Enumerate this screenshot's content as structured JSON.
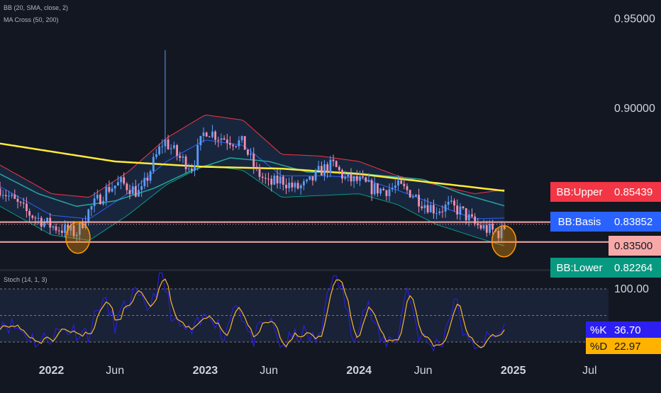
{
  "indicators": {
    "bb": "BB (20, SMA, close, 2)",
    "ma_cross": "MA Cross (50, 200)",
    "stoch": "Stoch (14, 1, 3)"
  },
  "chart_data": [
    {
      "type": "candlestick",
      "ylim": [
        0.81,
        0.96
      ],
      "y_ticks": [
        "0.95000",
        "0.90000"
      ],
      "y_tick_values": [
        0.95,
        0.9
      ],
      "x_ticks": [
        "2022",
        "Jun",
        "2023",
        "Jun",
        "2024",
        "Jun",
        "2025",
        "Jul"
      ],
      "x_tick_dates": [
        "2022-01-01",
        "2022-06-01",
        "2023-01-01",
        "2023-06-01",
        "2024-01-01",
        "2024-06-01",
        "2025-01-01",
        "2025-07-01"
      ],
      "x_range": [
        "2021-09-01",
        "2025-08-15"
      ],
      "horizontal_levels": [
        0.8362,
        0.8251
      ],
      "highlight_circles": [
        {
          "date": "2022-03-05",
          "value": 0.8275
        },
        {
          "date": "2024-12-10",
          "value": 0.8255
        }
      ],
      "series": {
        "close_anchors": [
          [
            "2021-09-01",
            0.855
          ],
          [
            "2021-11-01",
            0.842
          ],
          [
            "2022-01-01",
            0.834
          ],
          [
            "2022-03-01",
            0.83
          ],
          [
            "2022-04-01",
            0.843
          ],
          [
            "2022-05-15",
            0.855
          ],
          [
            "2022-06-15",
            0.858
          ],
          [
            "2022-08-01",
            0.852
          ],
          [
            "2022-09-01",
            0.87
          ],
          [
            "2022-09-25",
            0.882
          ],
          [
            "2022-11-01",
            0.872
          ],
          [
            "2022-12-01",
            0.867
          ],
          [
            "2023-01-01",
            0.888
          ],
          [
            "2023-02-01",
            0.884
          ],
          [
            "2023-03-01",
            0.882
          ],
          [
            "2023-04-01",
            0.88
          ],
          [
            "2023-05-01",
            0.865
          ],
          [
            "2023-06-01",
            0.857
          ],
          [
            "2023-07-01",
            0.86
          ],
          [
            "2023-08-01",
            0.855
          ],
          [
            "2023-09-01",
            0.857
          ],
          [
            "2023-10-01",
            0.865
          ],
          [
            "2023-11-01",
            0.868
          ],
          [
            "2023-12-01",
            0.86
          ],
          [
            "2024-01-01",
            0.859
          ],
          [
            "2024-02-01",
            0.855
          ],
          [
            "2024-03-01",
            0.854
          ],
          [
            "2024-04-01",
            0.856
          ],
          [
            "2024-05-01",
            0.853
          ],
          [
            "2024-06-01",
            0.847
          ],
          [
            "2024-07-01",
            0.843
          ],
          [
            "2024-08-01",
            0.845
          ],
          [
            "2024-09-01",
            0.842
          ],
          [
            "2024-10-01",
            0.835
          ],
          [
            "2024-11-01",
            0.832
          ],
          [
            "2024-12-01",
            0.83
          ],
          [
            "2024-12-15",
            0.835
          ]
        ],
        "spike": {
          "date": "2022-09-26",
          "high": 0.932
        },
        "bb_upper": [
          [
            "2021-09-01",
            0.868
          ],
          [
            "2022-01-01",
            0.852
          ],
          [
            "2022-04-01",
            0.85
          ],
          [
            "2022-07-01",
            0.864
          ],
          [
            "2022-10-01",
            0.883
          ],
          [
            "2023-01-01",
            0.896
          ],
          [
            "2023-04-01",
            0.893
          ],
          [
            "2023-07-01",
            0.874
          ],
          [
            "2023-10-01",
            0.873
          ],
          [
            "2024-01-01",
            0.87
          ],
          [
            "2024-04-01",
            0.862
          ],
          [
            "2024-07-01",
            0.857
          ],
          [
            "2024-10-01",
            0.852
          ],
          [
            "2024-12-15",
            0.8544
          ]
        ],
        "bb_basis": [
          [
            "2021-09-01",
            0.856
          ],
          [
            "2022-01-01",
            0.84
          ],
          [
            "2022-04-01",
            0.838
          ],
          [
            "2022-07-01",
            0.852
          ],
          [
            "2022-10-01",
            0.87
          ],
          [
            "2023-01-01",
            0.882
          ],
          [
            "2023-04-01",
            0.879
          ],
          [
            "2023-07-01",
            0.862
          ],
          [
            "2023-10-01",
            0.862
          ],
          [
            "2024-01-01",
            0.861
          ],
          [
            "2024-04-01",
            0.854
          ],
          [
            "2024-07-01",
            0.846
          ],
          [
            "2024-10-01",
            0.838
          ],
          [
            "2024-12-15",
            0.8385
          ]
        ],
        "bb_lower": [
          [
            "2021-09-01",
            0.845
          ],
          [
            "2022-01-01",
            0.829
          ],
          [
            "2022-04-01",
            0.826
          ],
          [
            "2022-07-01",
            0.84
          ],
          [
            "2022-10-01",
            0.857
          ],
          [
            "2023-01-01",
            0.868
          ],
          [
            "2023-04-01",
            0.865
          ],
          [
            "2023-07-01",
            0.85
          ],
          [
            "2023-10-01",
            0.851
          ],
          [
            "2024-01-01",
            0.852
          ],
          [
            "2024-04-01",
            0.846
          ],
          [
            "2024-07-01",
            0.835
          ],
          [
            "2024-10-01",
            0.828
          ],
          [
            "2024-12-15",
            0.8226
          ]
        ],
        "ma50": [
          [
            "2021-09-01",
            0.863
          ],
          [
            "2021-12-01",
            0.852
          ],
          [
            "2022-03-01",
            0.845
          ],
          [
            "2022-06-01",
            0.848
          ],
          [
            "2022-09-01",
            0.855
          ],
          [
            "2022-12-01",
            0.865
          ],
          [
            "2023-03-01",
            0.872
          ],
          [
            "2023-06-01",
            0.87
          ],
          [
            "2023-09-01",
            0.864
          ],
          [
            "2023-12-01",
            0.864
          ],
          [
            "2024-03-01",
            0.862
          ],
          [
            "2024-06-01",
            0.86
          ],
          [
            "2024-09-01",
            0.852
          ],
          [
            "2024-12-15",
            0.845
          ]
        ],
        "ma200": [
          [
            "2021-09-01",
            0.88
          ],
          [
            "2022-06-01",
            0.87
          ],
          [
            "2023-01-01",
            0.867
          ],
          [
            "2023-07-01",
            0.866
          ],
          [
            "2024-01-01",
            0.863
          ],
          [
            "2024-07-01",
            0.858
          ],
          [
            "2024-12-15",
            0.8535
          ]
        ]
      },
      "labels": [
        {
          "name": "BB:Upper",
          "value": "0.85439",
          "color": "#f23645"
        },
        {
          "name": "BB:Basis",
          "value": "0.83852",
          "color": "#2962ff"
        },
        {
          "name": "",
          "value": "0.83500",
          "color": "#f7a9a8"
        },
        {
          "name": "BB:Lower",
          "value": "0.82264",
          "color": "#089981"
        }
      ],
      "label_values": [
        0.85439,
        0.83852,
        0.835,
        0.82264
      ],
      "colors": {
        "up": "#5b9cf6",
        "down": "#f48fb1",
        "bb_upper": "#f23645",
        "bb_basis": "#2962ff",
        "bb_lower": "#089981",
        "ma50": "#26a69a",
        "ma200": "#ffeb3b",
        "level": "#f7a9a8",
        "circle": "#ff9800"
      }
    },
    {
      "type": "line",
      "ylim": [
        0,
        100
      ],
      "y_ticks": [
        "100.00"
      ],
      "bands": [
        80,
        50,
        20
      ],
      "k_anchors": [
        [
          "2021-09-01",
          45
        ],
        [
          "2021-10-15",
          35
        ],
        [
          "2021-12-01",
          20
        ],
        [
          "2022-02-01",
          35
        ],
        [
          "2022-04-01",
          30
        ],
        [
          "2022-05-01",
          70
        ],
        [
          "2022-06-01",
          40
        ],
        [
          "2022-07-15",
          75
        ],
        [
          "2022-08-15",
          55
        ],
        [
          "2022-09-20",
          95
        ],
        [
          "2022-10-20",
          40
        ],
        [
          "2022-12-01",
          30
        ],
        [
          "2023-01-15",
          55
        ],
        [
          "2023-02-15",
          25
        ],
        [
          "2023-03-15",
          70
        ],
        [
          "2023-04-20",
          20
        ],
        [
          "2023-06-01",
          45
        ],
        [
          "2023-07-01",
          15
        ],
        [
          "2023-08-15",
          30
        ],
        [
          "2023-10-01",
          20
        ],
        [
          "2023-10-20",
          90
        ],
        [
          "2023-11-20",
          85
        ],
        [
          "2023-12-15",
          25
        ],
        [
          "2024-01-20",
          65
        ],
        [
          "2024-02-20",
          20
        ],
        [
          "2024-04-01",
          25
        ],
        [
          "2024-04-25",
          85
        ],
        [
          "2024-05-20",
          30
        ],
        [
          "2024-06-20",
          15
        ],
        [
          "2024-07-15",
          20
        ],
        [
          "2024-08-15",
          70
        ],
        [
          "2024-09-15",
          15
        ],
        [
          "2024-10-15",
          20
        ],
        [
          "2024-11-15",
          25
        ],
        [
          "2024-12-15",
          36.7
        ]
      ],
      "labels": [
        {
          "name": "%K",
          "value": "36.70",
          "color": "#2d1ff2"
        },
        {
          "name": "%D",
          "value": "22.97",
          "color": "#ffb300"
        }
      ],
      "label_values": [
        36.7,
        22.97
      ],
      "colors": {
        "k": "#2d1ff2",
        "d": "#f7b731"
      }
    }
  ]
}
